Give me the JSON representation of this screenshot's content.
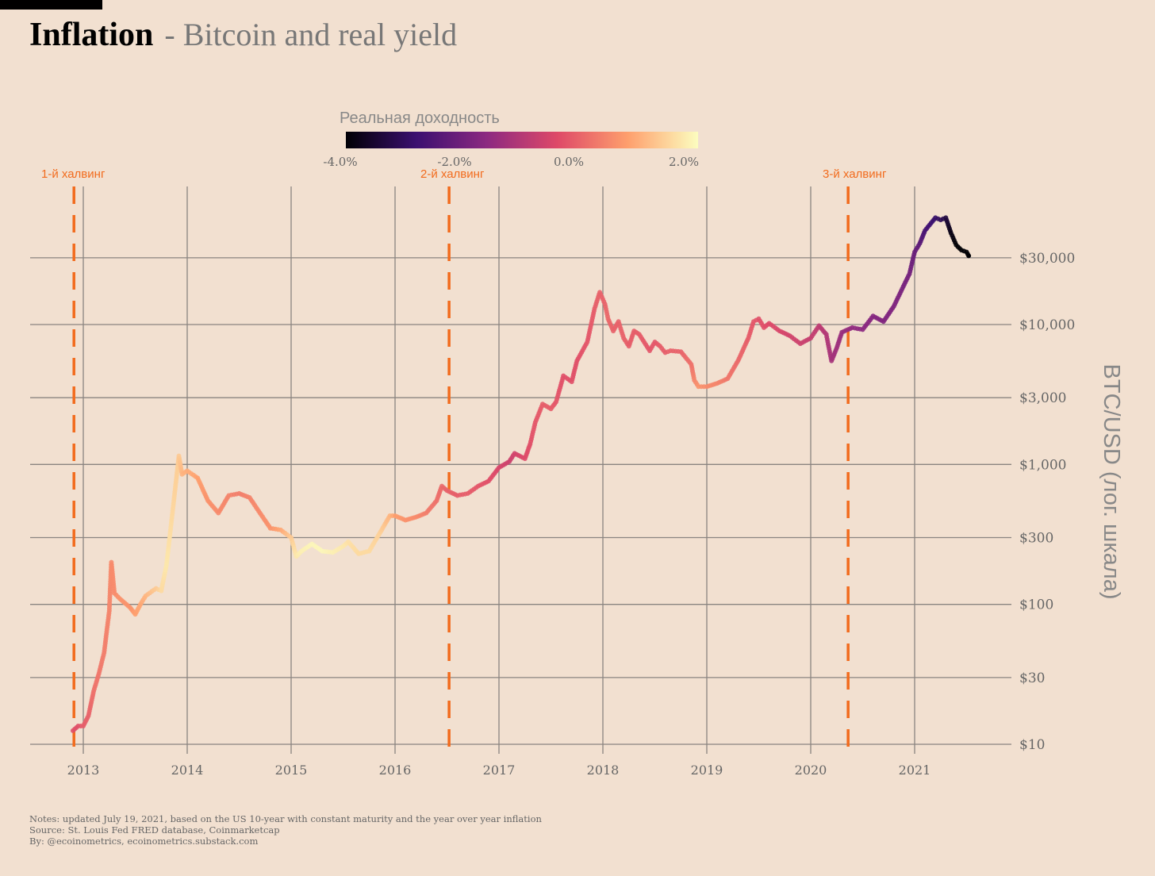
{
  "title": {
    "main": "Inflation",
    "sub": "- Bitcoin and real yield"
  },
  "legend": {
    "title": "Реальная доходность",
    "ticks": [
      "-4.0%",
      "-2.0%",
      "0.0%",
      "2.0%"
    ],
    "colors": [
      "#000004",
      "#3b0f70",
      "#8c2981",
      "#de4968",
      "#fe9f6d",
      "#fcfdbf"
    ]
  },
  "halvings": [
    {
      "label": "1-й халвинг",
      "year": 2012.91
    },
    {
      "label": "2-й халвинг",
      "year": 2016.52
    },
    {
      "label": "3-й халвинг",
      "year": 2020.36
    }
  ],
  "notes": [
    "Notes: updated July 19, 2021, based on the US 10-year with constant maturity and the year over year inflation",
    "Source: St. Louis Fed FRED database, Coinmarketcap",
    "By: @ecoinometrics, ecoinometrics.substack.com"
  ],
  "accent_color": "#f26b1d",
  "chart_data": {
    "type": "scatter",
    "x_label": "",
    "y_label": "BTC/USD (лог. шкала)",
    "y_scale": "log",
    "x_ticks": [
      "2013",
      "2014",
      "2015",
      "2016",
      "2017",
      "2018",
      "2019",
      "2020",
      "2021"
    ],
    "y_ticks": [
      {
        "value": 10,
        "label": "$10"
      },
      {
        "value": 30,
        "label": "$30"
      },
      {
        "value": 100,
        "label": "$100"
      },
      {
        "value": 300,
        "label": "$300"
      },
      {
        "value": 1000,
        "label": "$1,000"
      },
      {
        "value": 3000,
        "label": "$3,000"
      },
      {
        "value": 10000,
        "label": "$10,000"
      },
      {
        "value": 30000,
        "label": "$30,000"
      }
    ],
    "x_range": [
      2012.5,
      2021.95
    ],
    "y_range": [
      8.5,
      70000
    ],
    "color_scale": {
      "variable": "real_yield_percent",
      "min": -4.0,
      "max": 2.5
    },
    "points": [
      [
        2012.9,
        12.5,
        0.0
      ],
      [
        2012.95,
        13.5,
        0.0
      ],
      [
        2013.0,
        13.5,
        0.2
      ],
      [
        2013.05,
        16,
        0.3
      ],
      [
        2013.1,
        24,
        0.5
      ],
      [
        2013.15,
        32,
        0.6
      ],
      [
        2013.2,
        45,
        0.7
      ],
      [
        2013.25,
        90,
        0.8
      ],
      [
        2013.27,
        200,
        0.9
      ],
      [
        2013.3,
        120,
        0.9
      ],
      [
        2013.35,
        110,
        1.0
      ],
      [
        2013.45,
        95,
        1.0
      ],
      [
        2013.5,
        85,
        1.2
      ],
      [
        2013.55,
        100,
        1.3
      ],
      [
        2013.6,
        115,
        1.5
      ],
      [
        2013.7,
        130,
        1.8
      ],
      [
        2013.75,
        125,
        2.0
      ],
      [
        2013.8,
        190,
        2.2
      ],
      [
        2013.85,
        400,
        2.0
      ],
      [
        2013.92,
        1150,
        1.8
      ],
      [
        2013.95,
        850,
        1.5
      ],
      [
        2014.0,
        900,
        1.4
      ],
      [
        2014.1,
        800,
        1.2
      ],
      [
        2014.2,
        550,
        1.0
      ],
      [
        2014.3,
        450,
        0.9
      ],
      [
        2014.4,
        600,
        0.8
      ],
      [
        2014.5,
        620,
        0.7
      ],
      [
        2014.6,
        580,
        0.8
      ],
      [
        2014.7,
        450,
        0.9
      ],
      [
        2014.8,
        350,
        1.0
      ],
      [
        2014.9,
        340,
        1.3
      ],
      [
        2015.0,
        300,
        1.8
      ],
      [
        2015.05,
        220,
        2.2
      ],
      [
        2015.1,
        240,
        2.3
      ],
      [
        2015.2,
        270,
        2.4
      ],
      [
        2015.3,
        240,
        2.4
      ],
      [
        2015.4,
        235,
        2.3
      ],
      [
        2015.5,
        260,
        2.2
      ],
      [
        2015.55,
        280,
        2.1
      ],
      [
        2015.65,
        230,
        2.0
      ],
      [
        2015.75,
        240,
        2.0
      ],
      [
        2015.85,
        320,
        1.9
      ],
      [
        2015.95,
        430,
        1.5
      ],
      [
        2016.0,
        430,
        1.2
      ],
      [
        2016.1,
        400,
        1.0
      ],
      [
        2016.2,
        420,
        0.9
      ],
      [
        2016.3,
        450,
        0.7
      ],
      [
        2016.4,
        550,
        0.5
      ],
      [
        2016.45,
        700,
        0.4
      ],
      [
        2016.5,
        650,
        0.3
      ],
      [
        2016.6,
        600,
        0.2
      ],
      [
        2016.7,
        620,
        0.2
      ],
      [
        2016.8,
        700,
        0.1
      ],
      [
        2016.9,
        760,
        0.0
      ],
      [
        2017.0,
        950,
        -0.2
      ],
      [
        2017.1,
        1050,
        -0.4
      ],
      [
        2017.15,
        1200,
        -0.3
      ],
      [
        2017.25,
        1100,
        -0.1
      ],
      [
        2017.3,
        1400,
        0.0
      ],
      [
        2017.35,
        2000,
        0.1
      ],
      [
        2017.42,
        2700,
        0.2
      ],
      [
        2017.5,
        2500,
        0.2
      ],
      [
        2017.55,
        2800,
        0.1
      ],
      [
        2017.62,
        4300,
        0.0
      ],
      [
        2017.7,
        3900,
        0.0
      ],
      [
        2017.75,
        5500,
        0.0
      ],
      [
        2017.85,
        7500,
        0.1
      ],
      [
        2017.92,
        13000,
        0.2
      ],
      [
        2017.97,
        17000,
        0.3
      ],
      [
        2018.02,
        14000,
        0.3
      ],
      [
        2018.05,
        11000,
        0.4
      ],
      [
        2018.1,
        9000,
        0.3
      ],
      [
        2018.15,
        10500,
        0.3
      ],
      [
        2018.2,
        8000,
        0.3
      ],
      [
        2018.25,
        7000,
        0.2
      ],
      [
        2018.3,
        9000,
        0.2
      ],
      [
        2018.35,
        8500,
        0.2
      ],
      [
        2018.45,
        6500,
        0.1
      ],
      [
        2018.5,
        7500,
        0.1
      ],
      [
        2018.55,
        7000,
        0.2
      ],
      [
        2018.6,
        6300,
        0.2
      ],
      [
        2018.65,
        6500,
        0.3
      ],
      [
        2018.75,
        6400,
        0.3
      ],
      [
        2018.85,
        5200,
        0.5
      ],
      [
        2018.88,
        4000,
        0.8
      ],
      [
        2018.92,
        3600,
        1.0
      ],
      [
        2019.0,
        3600,
        0.9
      ],
      [
        2019.1,
        3800,
        0.8
      ],
      [
        2019.2,
        4100,
        0.6
      ],
      [
        2019.3,
        5500,
        0.4
      ],
      [
        2019.4,
        8000,
        0.2
      ],
      [
        2019.45,
        10500,
        0.1
      ],
      [
        2019.5,
        11000,
        0.0
      ],
      [
        2019.55,
        9500,
        0.0
      ],
      [
        2019.6,
        10200,
        -0.1
      ],
      [
        2019.7,
        9000,
        -0.2
      ],
      [
        2019.8,
        8300,
        -0.3
      ],
      [
        2019.9,
        7300,
        -0.4
      ],
      [
        2020.0,
        8000,
        -0.5
      ],
      [
        2020.08,
        9800,
        -0.6
      ],
      [
        2020.15,
        8500,
        -0.8
      ],
      [
        2020.2,
        5500,
        -1.0
      ],
      [
        2020.25,
        6800,
        -1.1
      ],
      [
        2020.3,
        8800,
        -1.2
      ],
      [
        2020.4,
        9500,
        -1.3
      ],
      [
        2020.5,
        9200,
        -1.4
      ],
      [
        2020.6,
        11500,
        -1.5
      ],
      [
        2020.7,
        10500,
        -1.6
      ],
      [
        2020.8,
        13500,
        -1.6
      ],
      [
        2020.88,
        18000,
        -1.7
      ],
      [
        2020.95,
        23000,
        -1.8
      ],
      [
        2021.0,
        33000,
        -2.0
      ],
      [
        2021.05,
        38000,
        -2.2
      ],
      [
        2021.1,
        47000,
        -2.5
      ],
      [
        2021.2,
        58000,
        -2.8
      ],
      [
        2021.25,
        56000,
        -3.0
      ],
      [
        2021.3,
        58000,
        -3.3
      ],
      [
        2021.35,
        45000,
        -3.8
      ],
      [
        2021.4,
        37000,
        -4.0
      ],
      [
        2021.45,
        34000,
        -4.1
      ],
      [
        2021.5,
        33000,
        -4.2
      ],
      [
        2021.52,
        31000,
        -4.2
      ]
    ]
  }
}
